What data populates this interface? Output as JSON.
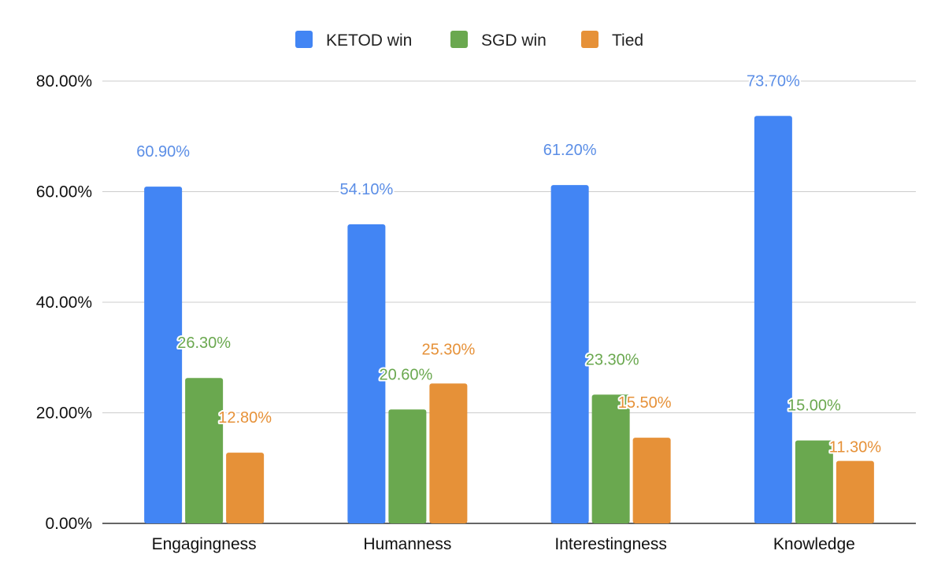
{
  "chart_data": {
    "type": "bar",
    "title": "",
    "xlabel": "",
    "ylabel": "",
    "categories": [
      "Engagingness",
      "Humanness",
      "Interestingness",
      "Knowledge"
    ],
    "series": [
      {
        "name": "KETOD win",
        "color": "#4285f4",
        "values": [
          60.9,
          54.1,
          61.2,
          73.7
        ],
        "labels": [
          "60.90%",
          "54.10%",
          "61.20%",
          "73.70%"
        ]
      },
      {
        "name": "SGD win",
        "color": "#6aa84f",
        "values": [
          26.3,
          20.6,
          23.3,
          15.0
        ],
        "labels": [
          "26.30%",
          "20.60%",
          "23.30%",
          "15.00%"
        ]
      },
      {
        "name": "Tied",
        "color": "#e69138",
        "values": [
          12.8,
          25.3,
          15.5,
          11.3
        ],
        "labels": [
          "12.80%",
          "25.30%",
          "15.50%",
          "11.30%"
        ]
      }
    ],
    "ylim": [
      0,
      80
    ],
    "yticks": [
      0,
      20,
      40,
      60,
      80
    ],
    "ytick_labels": [
      "0.00%",
      "20.00%",
      "40.00%",
      "60.00%",
      "80.00%"
    ],
    "grid": true,
    "legend_position": "top-center"
  }
}
